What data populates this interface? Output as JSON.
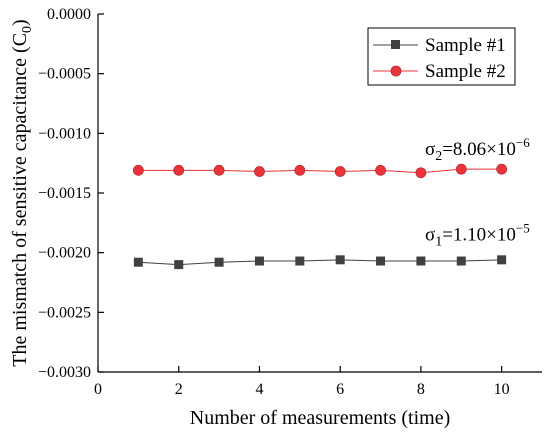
{
  "chart_data": {
    "type": "line",
    "xlabel": "Number of measurements (time)",
    "ylabel": "The mismatch of sensitive capacitance (C",
    "ylabel_sub": "0",
    "ylabel_close": ")",
    "xlim": [
      0,
      11
    ],
    "ylim": [
      -0.003,
      0
    ],
    "x_ticks": [
      0,
      2,
      4,
      6,
      8,
      10
    ],
    "y_ticks": [
      0,
      -0.0005,
      -0.001,
      -0.0015,
      -0.002,
      -0.0025,
      -0.003
    ],
    "x_tick_labels": [
      "0",
      "2",
      "4",
      "6",
      "8",
      "10"
    ],
    "y_tick_labels": [
      "0.0000",
      "−0.0005",
      "−0.0010",
      "−0.0015",
      "−0.0020",
      "−0.0025",
      "−0.0030"
    ],
    "x": [
      1,
      2,
      3,
      4,
      5,
      6,
      7,
      8,
      9,
      10
    ],
    "series": [
      {
        "name": "Sample #1",
        "marker": "square",
        "color": "#404040",
        "values": [
          -0.00208,
          -0.0021,
          -0.00208,
          -0.00207,
          -0.00207,
          -0.00206,
          -0.00207,
          -0.00207,
          -0.00207,
          -0.00206
        ]
      },
      {
        "name": "Sample #2",
        "marker": "circle",
        "color": "#e8343a",
        "values": [
          -0.00131,
          -0.00131,
          -0.00131,
          -0.00132,
          -0.00131,
          -0.00132,
          -0.00131,
          -0.00133,
          -0.0013,
          -0.0013
        ]
      }
    ],
    "legend_position": "top-right",
    "grid": false,
    "annotations": [
      {
        "sym": "σ",
        "sub": "2",
        "text": "=8.06×10",
        "sup": "−6",
        "x": 8.1,
        "y": -0.00118
      },
      {
        "sym": "σ",
        "sub": "1",
        "text": "=1.10×10",
        "sup": "−5",
        "x": 8.1,
        "y": -0.0019
      }
    ]
  }
}
